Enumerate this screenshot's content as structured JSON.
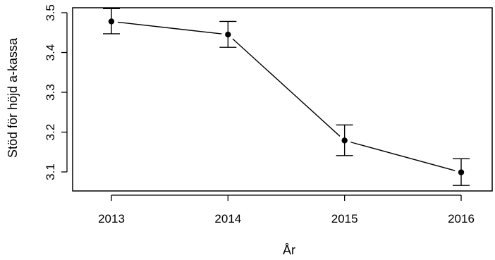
{
  "chart_data": {
    "type": "line",
    "xlabel": "År",
    "ylabel": "Stöd för höjd a-kassa",
    "x": [
      "2013",
      "2014",
      "2015",
      "2016"
    ],
    "series": [
      {
        "values": [
          3.478,
          3.445,
          3.179,
          3.099
        ],
        "error_low": [
          3.447,
          3.413,
          3.141,
          3.066
        ],
        "error_high": [
          3.51,
          3.478,
          3.218,
          3.133
        ]
      }
    ],
    "yticks": [
      "3.1",
      "3.2",
      "3.3",
      "3.4",
      "3.5"
    ],
    "ylim": [
      3.05,
      3.52
    ],
    "grid": false,
    "legend": "none",
    "colors": {
      "line": "#000000",
      "marker": "#000000",
      "background": "#ffffff"
    }
  }
}
